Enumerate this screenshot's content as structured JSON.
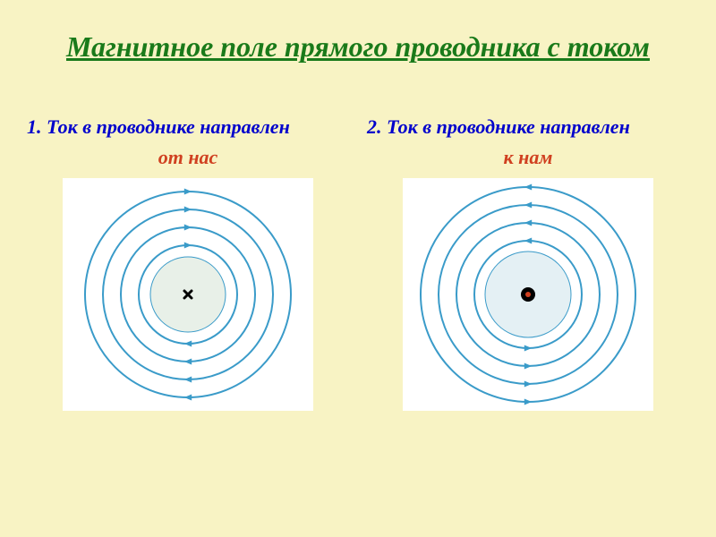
{
  "title": "Магнитное поле прямого проводника с током",
  "left": {
    "caption": "1. Ток в проводнике направлен",
    "direction": "от нас",
    "diagram": {
      "type": "concentric-field-lines",
      "rotation": "clockwise",
      "center_symbol": "cross",
      "background": "#ffffff",
      "inner_circle_fill": "#e8f0e8",
      "inner_circle_radius": 42,
      "line_color": "#3a9bc9",
      "line_width": 2,
      "radii": [
        55,
        75,
        95,
        115
      ],
      "arrow_size": 7,
      "cross_color": "#000000",
      "cross_size": 8
    }
  },
  "right": {
    "caption": "2. Ток в проводнике направлен",
    "direction": "к нам",
    "diagram": {
      "type": "concentric-field-lines",
      "rotation": "counterclockwise",
      "center_symbol": "dot",
      "background": "#ffffff",
      "inner_circle_fill": "#e4f0f4",
      "inner_circle_radius": 48,
      "line_color": "#3a9bc9",
      "line_width": 2,
      "radii": [
        60,
        80,
        100,
        120
      ],
      "arrow_size": 7,
      "dot_outer_color": "#000000",
      "dot_outer_radius": 8,
      "dot_inner_color": "#d04020",
      "dot_inner_radius": 3
    }
  },
  "colors": {
    "page_bg": "#f8f3c4",
    "title": "#1a7a1a",
    "caption": "#0000cc",
    "direction": "#d04020"
  }
}
